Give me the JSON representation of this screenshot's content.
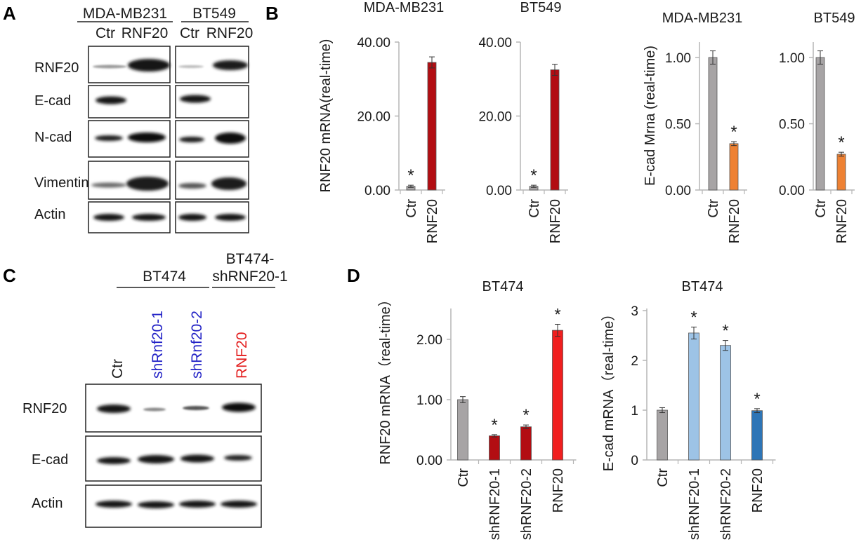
{
  "panels": {
    "A": {
      "label": "A",
      "cell_lines": [
        "MDA-MB231",
        "BT549"
      ],
      "lanes": [
        "Ctr",
        "RNF20",
        "Ctr",
        "RNF20"
      ],
      "rows": [
        "RNF20",
        "E-cad",
        "N-cad",
        "Vimentin",
        "Actin"
      ]
    },
    "B": {
      "label": "B"
    },
    "C": {
      "label": "C",
      "group1": "BT474",
      "group2_line1": "BT474-",
      "group2_line2": "shRNF20-1",
      "lanes": [
        "Ctr",
        "shRnf20-1",
        "shRnf20-2",
        "RNF20"
      ],
      "rows": [
        "RNF20",
        "E-cad",
        "Actin"
      ]
    },
    "D": {
      "label": "D"
    }
  },
  "colors": {
    "grey": "#a7a4a5",
    "dark_red": "#b20d12",
    "red": "#f01f1f",
    "orange": "#ee8133",
    "light_blue": "#9dc3e6",
    "blue": "#2e75b6",
    "lane_blue": "#2323c6",
    "lane_red": "#e31d1d"
  },
  "chart_data": [
    {
      "type": "bar",
      "title": "MDA-MB231",
      "ylabel": "RNF20 mRNA(real-time)",
      "categories": [
        "Ctr",
        "RNF20"
      ],
      "values": [
        1.0,
        34.5
      ],
      "errors": [
        0.3,
        1.5
      ],
      "colors": [
        "#a7a4a5",
        "#b20d12"
      ],
      "annotations": [
        "*",
        ""
      ],
      "ylim": [
        0,
        40
      ],
      "yticks": [
        "0.00",
        "20.00",
        "40.00"
      ]
    },
    {
      "type": "bar",
      "title": "BT549",
      "ylabel": "",
      "categories": [
        "Ctr",
        "RNF20"
      ],
      "values": [
        1.0,
        32.5
      ],
      "errors": [
        0.3,
        1.5
      ],
      "colors": [
        "#a7a4a5",
        "#b20d12"
      ],
      "annotations": [
        "*",
        ""
      ],
      "ylim": [
        0,
        40
      ],
      "yticks": [
        "0.00",
        "20.00",
        "40.00"
      ]
    },
    {
      "type": "bar",
      "title": "MDA-MB231",
      "ylabel": "E-cad Mrna (real-time)",
      "categories": [
        "Ctr",
        "RNF20"
      ],
      "values": [
        1.0,
        0.35
      ],
      "errors": [
        0.05,
        0.015
      ],
      "colors": [
        "#a7a4a5",
        "#ee8133"
      ],
      "annotations": [
        "",
        "*"
      ],
      "ylim": [
        0,
        1.1
      ],
      "yticks": [
        "0.00",
        "0.50",
        "1.00"
      ]
    },
    {
      "type": "bar",
      "title": "BT549",
      "ylabel": "",
      "categories": [
        "Ctr",
        "RNF20"
      ],
      "values": [
        1.0,
        0.27
      ],
      "errors": [
        0.05,
        0.015
      ],
      "colors": [
        "#a7a4a5",
        "#ee8133"
      ],
      "annotations": [
        "",
        "*"
      ],
      "ylim": [
        0,
        1.1
      ],
      "yticks": [
        "0.00",
        "0.50",
        "1.00"
      ]
    },
    {
      "type": "bar",
      "title": "BT474",
      "ylabel": "RNF20 mRNA（real-time）",
      "categories": [
        "Ctr",
        "shRNF20-1",
        "shRNF20-2",
        "RNF20"
      ],
      "values": [
        1.0,
        0.4,
        0.55,
        2.15
      ],
      "errors": [
        0.05,
        0.02,
        0.03,
        0.1
      ],
      "colors": [
        "#a7a4a5",
        "#b20d12",
        "#b20d12",
        "#f01f1f"
      ],
      "annotations": [
        "",
        "*",
        "*",
        "*"
      ],
      "ylim": [
        0,
        2.5
      ],
      "yticks": [
        "0.00",
        "1.00",
        "2.00"
      ]
    },
    {
      "type": "bar",
      "title": "BT474",
      "ylabel": "E-cad mRNA（real-time）",
      "categories": [
        "Ctr",
        "shRNF20-1",
        "shRNF20-2",
        "RNF20"
      ],
      "values": [
        1.0,
        2.55,
        2.3,
        0.99
      ],
      "errors": [
        0.05,
        0.12,
        0.1,
        0.04
      ],
      "colors": [
        "#a7a4a5",
        "#9dc3e6",
        "#9dc3e6",
        "#2e75b6"
      ],
      "annotations": [
        "",
        "*",
        "*",
        "*"
      ],
      "ylim": [
        0,
        3
      ],
      "yticks": [
        "0",
        "1",
        "2",
        "3"
      ]
    }
  ]
}
